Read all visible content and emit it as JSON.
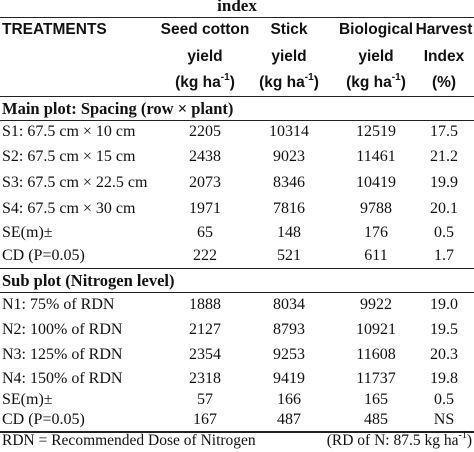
{
  "caption": "index",
  "header": {
    "treatments": "TREATMENTS",
    "columns": [
      {
        "line1": "Seed cotton",
        "line2": "yield",
        "line3": "(kg ha",
        "sup": "-1",
        "close": ")"
      },
      {
        "line1": "Stick",
        "line2": "yield",
        "line3": "(kg ha",
        "sup": "-1",
        "close": ")"
      },
      {
        "line1": "Biological",
        "line2": "yield",
        "line3": "(kg ha",
        "sup": "-1",
        "close": ")"
      },
      {
        "line1": "Harvest",
        "line2": "Index",
        "line3": "(%)",
        "sup": "",
        "close": ""
      }
    ]
  },
  "main_plot": {
    "title": "Main plot: Spacing (row × plant)",
    "rows": [
      {
        "label": "S1: 67.5 cm × 10 cm",
        "values": [
          "2205",
          "10314",
          "12519",
          "17.5"
        ]
      },
      {
        "label": "S2: 67.5 cm × 15 cm",
        "values": [
          "2438",
          "9023",
          "11461",
          "21.2"
        ]
      },
      {
        "label": "S3: 67.5 cm × 22.5 cm",
        "values": [
          "2073",
          "8346",
          "10419",
          "19.9"
        ]
      },
      {
        "label": "S4: 67.5 cm × 30 cm",
        "values": [
          "1971",
          "7816",
          "9788",
          "20.1"
        ]
      },
      {
        "label": "SE(m)±",
        "values": [
          "65",
          "148",
          "176",
          "0.5"
        ]
      },
      {
        "label": "CD (P=0.05)",
        "values": [
          "222",
          "521",
          "611",
          "1.7"
        ]
      }
    ]
  },
  "sub_plot": {
    "title": "Sub plot (Nitrogen level)",
    "rows": [
      {
        "label": "N1: 75% of RDN",
        "values": [
          "1888",
          "8034",
          "9922",
          "19.0"
        ]
      },
      {
        "label": "N2: 100% of  RDN",
        "values": [
          "2127",
          "8793",
          "10921",
          "19.5"
        ]
      },
      {
        "label": "N3: 125% of  RDN",
        "values": [
          "2354",
          "9253",
          "11608",
          "20.3"
        ]
      },
      {
        "label": "N4: 150% of  RDN",
        "values": [
          "2318",
          "9419",
          "11737",
          "19.8"
        ]
      },
      {
        "label": "SE(m)±",
        "values": [
          "57",
          "166",
          "165",
          "0.5"
        ]
      },
      {
        "label": "CD (P=0.05)",
        "values": [
          "167",
          "487",
          "485",
          "NS"
        ]
      }
    ]
  },
  "footer": {
    "left": "RDN = Recommended Dose of Nitrogen",
    "right_text": "(RD of N: 87.5 kg ha",
    "right_sup": "-1",
    "right_close": ")"
  }
}
